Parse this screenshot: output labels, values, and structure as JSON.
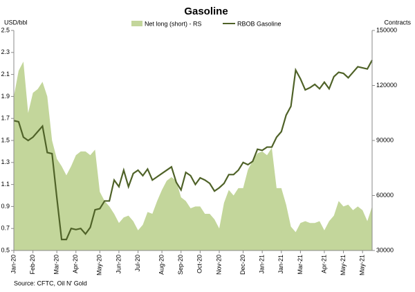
{
  "chart_data": {
    "type": "line",
    "title": "Gasoline",
    "y_label": "USD/bbl",
    "y2_label": "Contracts",
    "source": "Source: CFTC, Oil N' Gold",
    "categories": [
      "Jan-20",
      null,
      null,
      null,
      "Feb-20",
      null,
      null,
      null,
      null,
      "Mar-20",
      null,
      null,
      null,
      "Apr-20",
      null,
      null,
      null,
      null,
      "May-20",
      null,
      null,
      null,
      "Jun-20",
      null,
      null,
      null,
      "Jul-20",
      null,
      null,
      null,
      null,
      "Aug-20",
      null,
      null,
      null,
      "Sep-20",
      null,
      null,
      null,
      "Oct-20",
      null,
      null,
      null,
      "Nov-20",
      null,
      null,
      null,
      null,
      "Dec-20",
      null,
      null,
      null,
      "Jan-21",
      null,
      null,
      null,
      "Jan-21",
      null,
      null,
      null,
      "Mar-21",
      null,
      null,
      null,
      null,
      "Apr-21",
      null,
      null,
      null,
      "May-21",
      null,
      null,
      null,
      "May-21",
      null,
      null
    ],
    "series": [
      {
        "name": "Net long (short) - RS",
        "color": "#c3d69b",
        "style": "area",
        "axis": "y2",
        "values": [
          114000,
          128000,
          133000,
          105000,
          116000,
          118000,
          122000,
          114000,
          90000,
          80000,
          76000,
          71000,
          76000,
          82000,
          84000,
          84000,
          82000,
          85000,
          62000,
          57000,
          54000,
          50000,
          45000,
          48000,
          49000,
          46000,
          41000,
          44000,
          51000,
          50000,
          57000,
          63000,
          68000,
          70000,
          68000,
          59000,
          57000,
          53000,
          54000,
          54000,
          50000,
          50000,
          47000,
          42000,
          56000,
          63000,
          60000,
          64000,
          64000,
          74000,
          79000,
          83000,
          84000,
          82000,
          86000,
          64000,
          64000,
          55000,
          43000,
          40000,
          45000,
          46000,
          45000,
          45000,
          46000,
          41000,
          46000,
          49000,
          57000,
          54000,
          55000,
          52000,
          54000,
          52000,
          46000,
          54000
        ]
      },
      {
        "name": "RBOB Gasoline",
        "color": "#4f6228",
        "style": "line",
        "values": [
          1.68,
          1.67,
          1.53,
          1.5,
          1.53,
          1.58,
          1.63,
          1.39,
          1.38,
          0.98,
          0.6,
          0.6,
          0.7,
          0.69,
          0.7,
          0.65,
          0.71,
          0.87,
          0.88,
          0.95,
          0.95,
          1.14,
          1.08,
          1.23,
          1.08,
          1.2,
          1.23,
          1.18,
          1.24,
          1.14,
          1.17,
          1.2,
          1.23,
          1.26,
          1.12,
          1.05,
          1.21,
          1.18,
          1.1,
          1.16,
          1.14,
          1.11,
          1.04,
          1.07,
          1.11,
          1.19,
          1.19,
          1.23,
          1.3,
          1.28,
          1.31,
          1.42,
          1.41,
          1.44,
          1.44,
          1.53,
          1.58,
          1.73,
          1.81,
          2.14,
          2.06,
          1.96,
          1.98,
          2.01,
          1.97,
          2.03,
          1.97,
          2.08,
          2.12,
          2.11,
          2.07,
          2.12,
          2.17,
          2.16,
          2.15,
          2.23
        ]
      }
    ],
    "ylim": [
      0.5,
      2.5
    ],
    "yticks": [
      0.5,
      0.7,
      0.9,
      1.1,
      1.3,
      1.5,
      1.7,
      1.9,
      2.1,
      2.3,
      2.5
    ],
    "y2lim": [
      30000,
      150000
    ],
    "y2ticks": [
      30000,
      60000,
      90000,
      120000,
      150000
    ]
  }
}
